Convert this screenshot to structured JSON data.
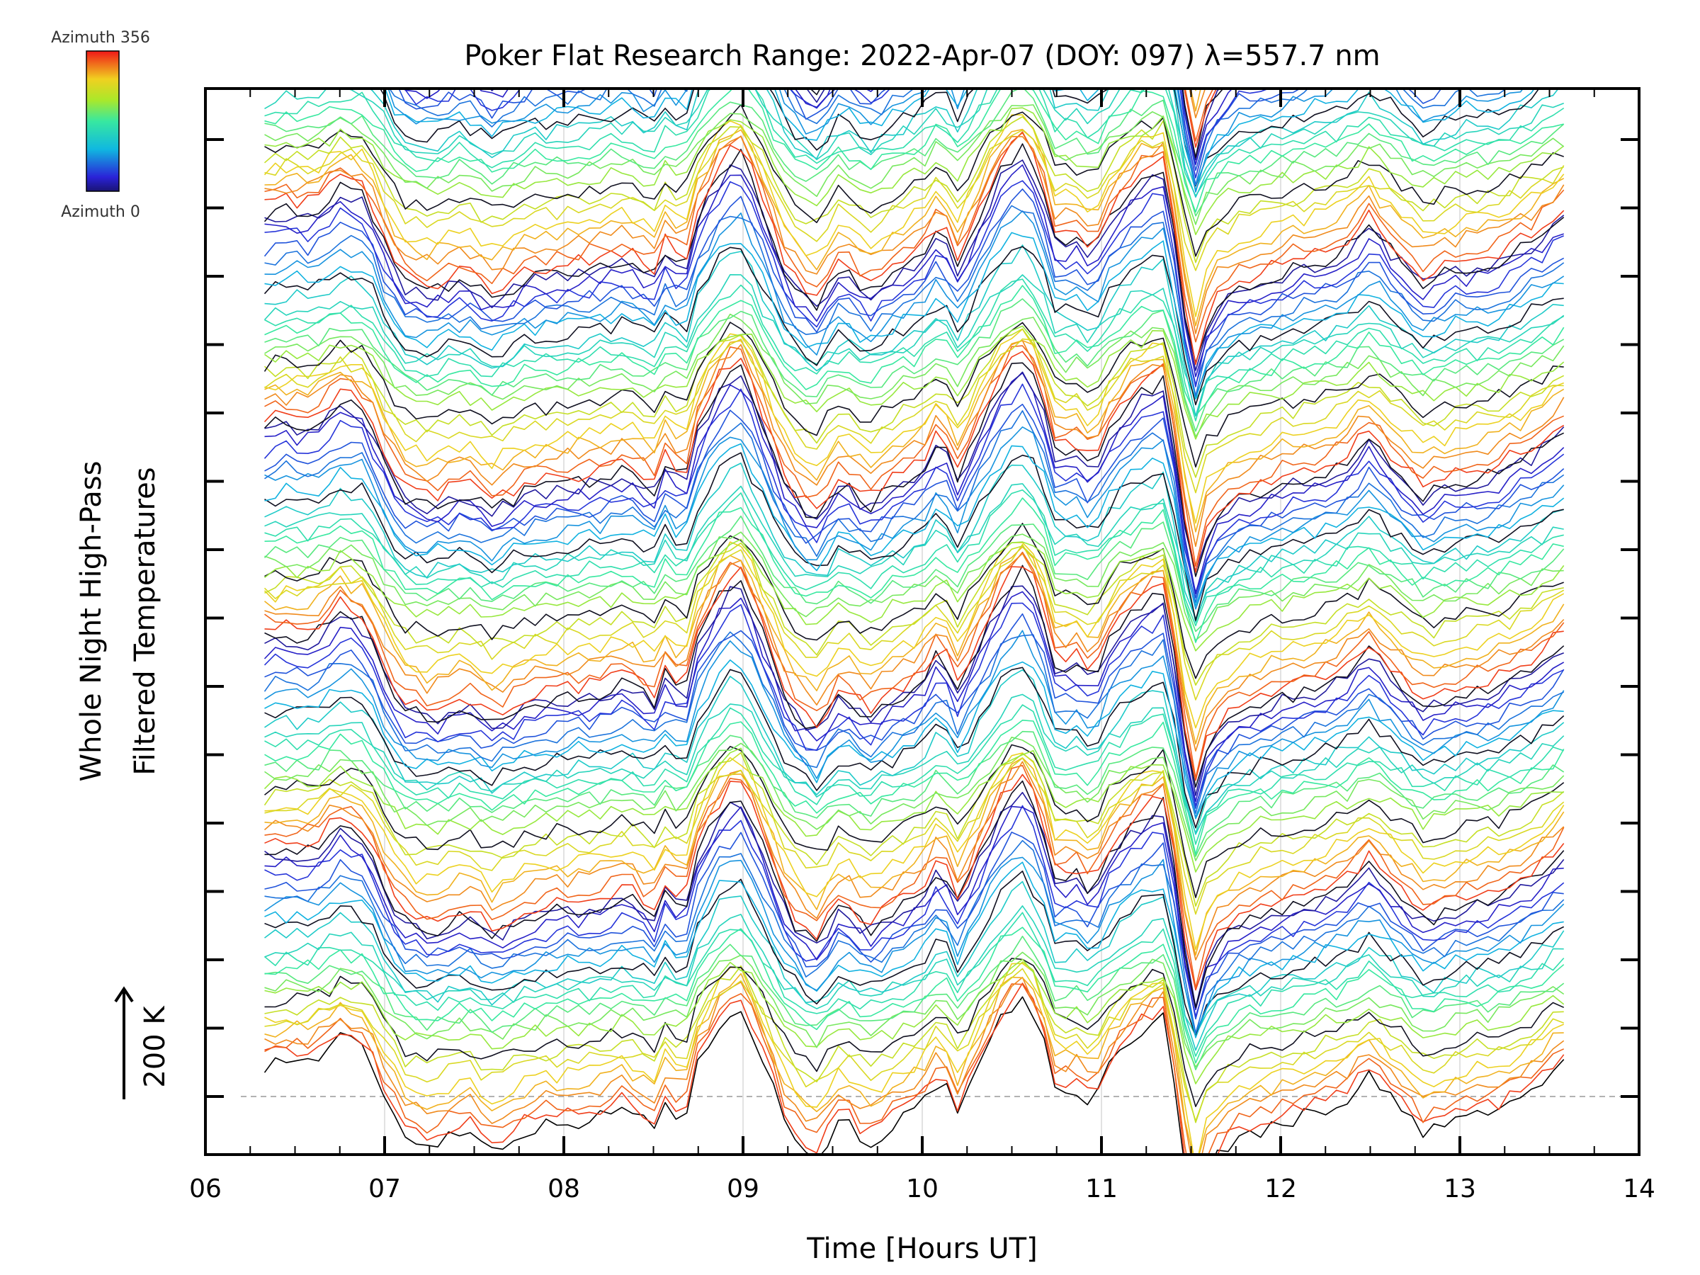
{
  "chart_data": {
    "type": "line",
    "title": "Poker Flat Research Range: 2022-Apr-07 (DOY: 097) λ=557.7 nm",
    "xlabel": "Time [Hours UT]",
    "ylabel_lines": [
      "Whole Night High-Pass",
      "Filtered Temperatures"
    ],
    "xlim": [
      6,
      14
    ],
    "x_tick_labels": [
      "06",
      "07",
      "08",
      "09",
      "10",
      "11",
      "12",
      "13",
      "14"
    ],
    "x_ticks": [
      6,
      7,
      8,
      9,
      10,
      11,
      12,
      13,
      14
    ],
    "x_grid": true,
    "y_scale_bar": {
      "label": "200 K",
      "value_k": 200
    },
    "colorbar": {
      "top_label": "Azimuth 356",
      "bottom_label": "Azimuth 0",
      "range": [
        0,
        356
      ],
      "colormap": "rainbow",
      "position": "top-left"
    },
    "stack": {
      "n_groups": 7,
      "traces_per_group": 24,
      "group_spacing_k": 400,
      "trace_spacing_k": 17,
      "x_start": 6.33,
      "x_end": 13.58,
      "baseline_dashed": true
    },
    "base_profile": {
      "x": [
        6.33,
        6.45,
        6.6,
        6.75,
        6.9,
        7.0,
        7.1,
        7.25,
        7.45,
        7.6,
        7.8,
        8.0,
        8.2,
        8.35,
        8.5,
        8.6,
        8.65,
        8.75,
        8.9,
        9.0,
        9.1,
        9.25,
        9.4,
        9.55,
        9.7,
        9.85,
        10.0,
        10.1,
        10.2,
        10.3,
        10.45,
        10.55,
        10.65,
        10.75,
        10.85,
        10.95,
        11.05,
        11.2,
        11.35,
        11.45,
        11.5,
        11.6,
        11.75,
        12.0,
        12.2,
        12.35,
        12.5,
        12.6,
        12.8,
        13.0,
        13.2,
        13.4,
        13.58
      ],
      "y": [
        60,
        70,
        65,
        110,
        90,
        0,
        -70,
        -90,
        -60,
        -100,
        -60,
        -50,
        -40,
        -20,
        -60,
        20,
        -80,
        60,
        160,
        170,
        80,
        -60,
        -120,
        -40,
        -90,
        -50,
        -20,
        40,
        -40,
        40,
        150,
        190,
        140,
        0,
        20,
        -20,
        60,
        120,
        150,
        -60,
        -260,
        -130,
        -80,
        -50,
        -30,
        -10,
        40,
        0,
        -70,
        -40,
        -30,
        10,
        60
      ]
    },
    "trace_variation": {
      "phase_weights": [
        1.0,
        0.9,
        0.7,
        0.55,
        0.6,
        0.75,
        0.85,
        0.95
      ],
      "noise_k": 30
    }
  }
}
